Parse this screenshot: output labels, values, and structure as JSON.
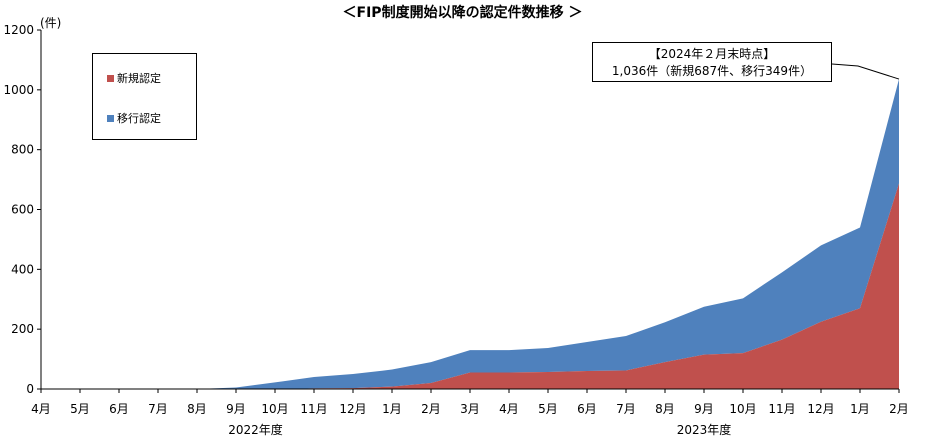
{
  "chart_data": {
    "type": "area",
    "stacked": true,
    "title": "＜FIP制度開始以降の認定件数推移 ＞",
    "ylabel": "(件)",
    "ylim": [
      0,
      1200
    ],
    "yticks": [
      0,
      200,
      400,
      600,
      800,
      1000,
      1200
    ],
    "categories": [
      "4月",
      "5月",
      "6月",
      "7月",
      "8月",
      "9月",
      "10月",
      "11月",
      "12月",
      "1月",
      "2月",
      "3月",
      "4月",
      "5月",
      "6月",
      "7月",
      "8月",
      "9月",
      "10月",
      "11月",
      "12月",
      "1月",
      "2月"
    ],
    "groups": [
      {
        "label": "2022年度",
        "start": 0,
        "end": 11
      },
      {
        "label": "2023年度",
        "start": 12,
        "end": 22
      }
    ],
    "series": [
      {
        "name": "新規認定",
        "color": "#c0504d",
        "values": [
          0,
          0,
          0,
          0,
          0,
          0,
          0,
          2,
          3,
          8,
          20,
          55,
          55,
          57,
          60,
          62,
          90,
          115,
          120,
          165,
          225,
          270,
          687
        ]
      },
      {
        "name": "移行認定",
        "color": "#4f81bd",
        "values": [
          0,
          0,
          0,
          0,
          0,
          5,
          22,
          38,
          47,
          57,
          70,
          75,
          75,
          80,
          97,
          115,
          133,
          160,
          183,
          225,
          255,
          270,
          349
        ]
      }
    ],
    "legend_position": "top-left",
    "grid": false,
    "annotation": {
      "line1": "【2024年２月末時点】",
      "line2": "1,036件（新規687件、移行349件）"
    }
  }
}
